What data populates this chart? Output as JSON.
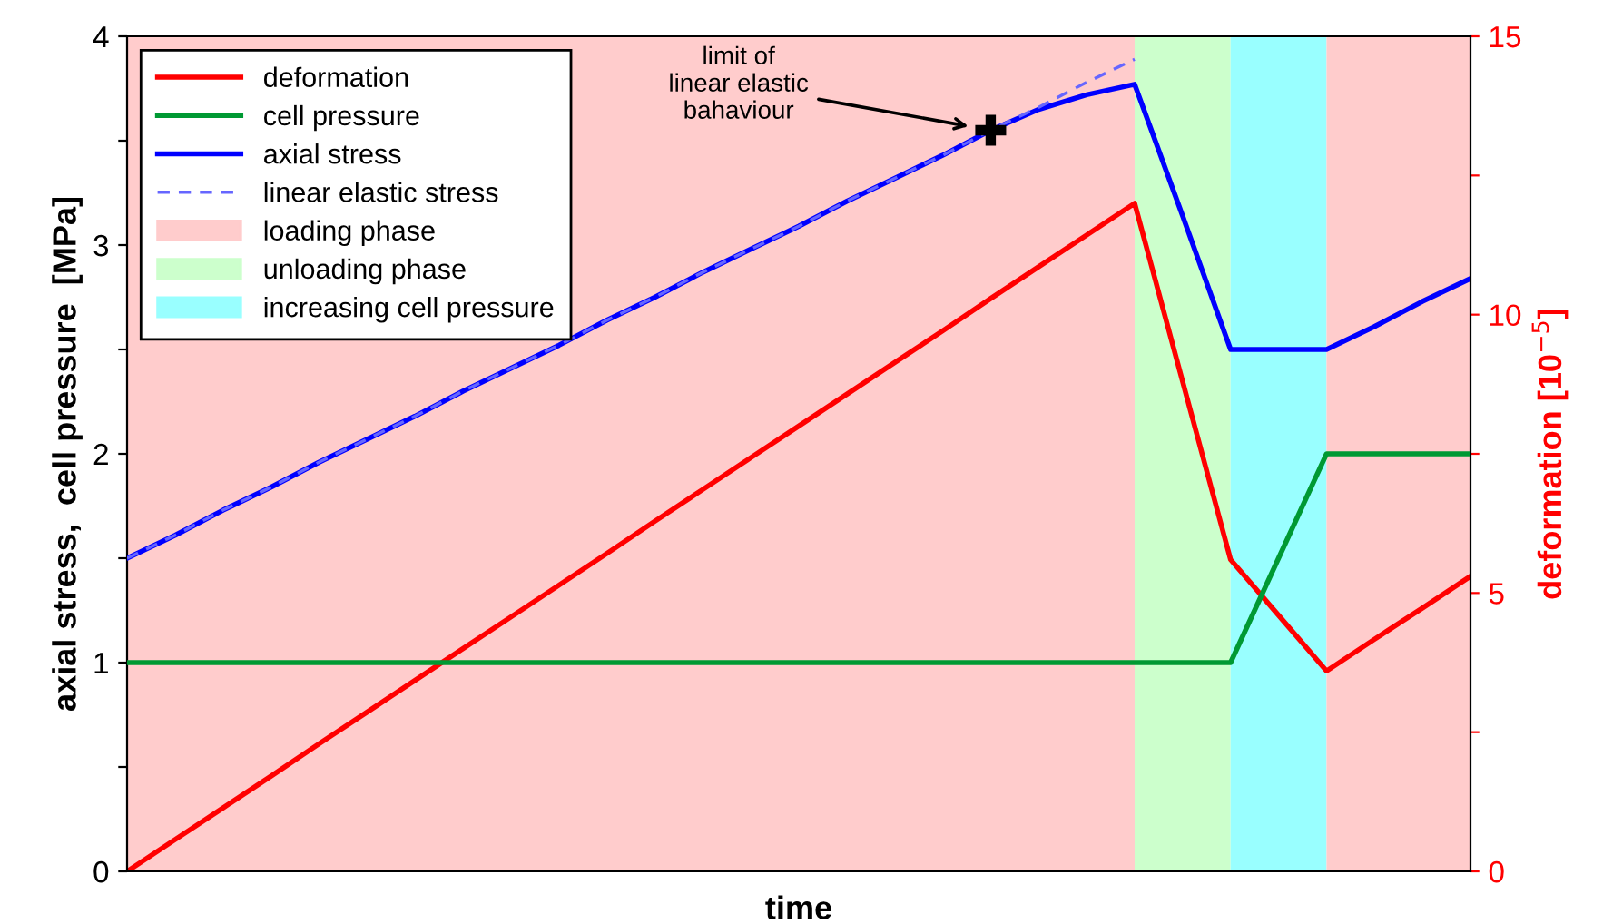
{
  "chart_data": {
    "type": "line",
    "xlabel": "time",
    "ylabel": "axial stress,  cell pressure  [MPa]",
    "y2label": "deformation [10$^{−5}$]",
    "categories": [
      null,
      null,
      null,
      null,
      null,
      null,
      null,
      null,
      null,
      null,
      null,
      null,
      null,
      null,
      null,
      null,
      null,
      null,
      null,
      null,
      null,
      null,
      null,
      null,
      null,
      null,
      null,
      null,
      null
    ],
    "ylim": [
      0,
      4
    ],
    "y2lim": [
      0,
      15
    ],
    "yticks": [
      0,
      {
        "value": 0.5,
        "label": null
      },
      1,
      {
        "value": 1.5,
        "label": null
      },
      2,
      {
        "value": 2.5,
        "label": null
      },
      3,
      {
        "value": 3.5,
        "label": null
      },
      4
    ],
    "y2ticks": [
      0,
      {
        "value": 2.5,
        "label": null
      },
      5,
      {
        "value": 7.5,
        "label": null
      },
      10,
      {
        "value": 12.5,
        "label": null
      },
      15
    ],
    "grid": false,
    "legend": "top left",
    "series": [
      {
        "name": "deformation",
        "color": "#ff0000",
        "axis": "y2",
        "values": [
          0,
          0.57,
          1.14,
          1.71,
          2.29,
          2.86,
          3.43,
          4,
          4.57,
          5.14,
          5.71,
          6.29,
          6.86,
          7.43,
          8,
          8.57,
          9.14,
          9.71,
          10.29,
          10.86,
          11.43,
          12,
          8.8,
          5.6,
          4.6,
          3.6,
          4.17,
          4.73,
          5.3
        ]
      },
      {
        "name": "cell pressure",
        "color": "#009933",
        "values": [
          1,
          1,
          1,
          1,
          1,
          1,
          1,
          1,
          1,
          1,
          1,
          1,
          1,
          1,
          1,
          1,
          1,
          1,
          1,
          1,
          1,
          1,
          1,
          1,
          1.5,
          2,
          2,
          2,
          2
        ]
      },
      {
        "name": "axial stress",
        "color": "#0000ff",
        "values": [
          1.5,
          1.61,
          1.73,
          1.84,
          1.96,
          2.07,
          2.18,
          2.3,
          2.41,
          2.52,
          2.64,
          2.75,
          2.87,
          2.98,
          3.09,
          3.21,
          3.32,
          3.43,
          3.55,
          3.65,
          3.72,
          3.77,
          3.14,
          2.5,
          2.5,
          2.5,
          2.61,
          2.73,
          2.84
        ]
      },
      {
        "name": "linear elastic stress",
        "color": "#6666ff",
        "line_style": "dashed",
        "values": [
          1.5,
          1.61,
          1.73,
          1.84,
          1.96,
          2.07,
          2.18,
          2.3,
          2.41,
          2.52,
          2.64,
          2.75,
          2.87,
          2.98,
          3.09,
          3.21,
          3.32,
          3.43,
          3.55,
          3.66,
          3.78,
          3.89,
          null,
          null,
          null,
          null,
          null,
          null,
          null
        ]
      },
      {
        "type": "scatter",
        "marker": "cross",
        "color": "#000000",
        "values": [
          null,
          null,
          null,
          null,
          null,
          null,
          null,
          null,
          null,
          null,
          null,
          null,
          null,
          null,
          null,
          null,
          null,
          null,
          3.55,
          null,
          null,
          null,
          null,
          null,
          null,
          null,
          null,
          null,
          null
        ]
      }
    ],
    "annotations": [
      "limit of\nlinear elastic\nbahaviour",
      "loading phase",
      "unloading phase",
      "increasing cell pressure"
    ]
  }
}
